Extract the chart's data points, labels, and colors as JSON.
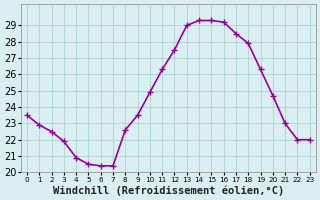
{
  "x": [
    0,
    1,
    2,
    3,
    4,
    5,
    6,
    7,
    8,
    9,
    10,
    11,
    12,
    13,
    14,
    15,
    16,
    17,
    18,
    19,
    20,
    21,
    22,
    23
  ],
  "y": [
    23.5,
    22.9,
    22.5,
    21.9,
    20.9,
    20.5,
    20.4,
    20.4,
    22.6,
    23.5,
    24.9,
    26.3,
    27.5,
    29.0,
    29.3,
    29.3,
    29.2,
    28.5,
    27.9,
    26.3,
    24.7,
    23.0,
    22.0,
    22.0
  ],
  "line_color": "#990099",
  "marker": "+",
  "marker_size": 5,
  "background_color": "#d8eef0",
  "grid_color": "#aacccc",
  "xlabel": "Windchill (Refroidissement éolien,°C)",
  "ylim": [
    20,
    30
  ],
  "xlim": [
    -0.5,
    23.5
  ],
  "yticks": [
    20,
    21,
    22,
    23,
    24,
    25,
    26,
    27,
    28,
    29
  ],
  "xticks": [
    0,
    1,
    2,
    3,
    4,
    5,
    6,
    7,
    8,
    9,
    10,
    11,
    12,
    13,
    14,
    15,
    16,
    17,
    18,
    19,
    20,
    21,
    22,
    23
  ],
  "xlabel_fontsize": 7.5,
  "tick_fontsize": 7,
  "line_width": 1.2
}
